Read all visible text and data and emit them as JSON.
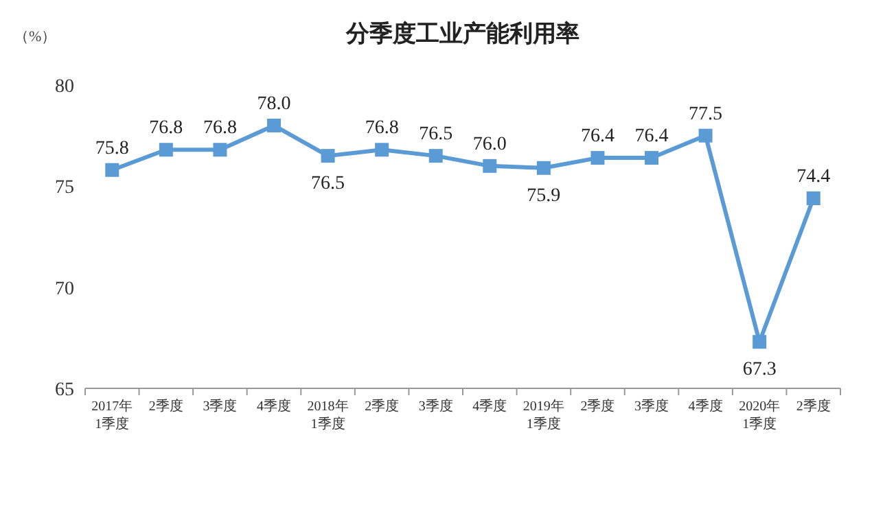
{
  "chart_data": {
    "type": "line",
    "title": "分季度工业产能利用率",
    "ylabel": "（%）",
    "categories": [
      "2017年\n1季度",
      "2季度",
      "3季度",
      "4季度",
      "2018年\n1季度",
      "2季度",
      "3季度",
      "4季度",
      "2019年\n1季度",
      "2季度",
      "3季度",
      "4季度",
      "2020年\n1季度",
      "2季度"
    ],
    "series": [
      {
        "color": "#5b9bd5",
        "values": [
          75.8,
          76.8,
          76.8,
          78.0,
          76.5,
          76.8,
          76.5,
          76.0,
          75.9,
          76.4,
          76.4,
          77.5,
          67.3,
          74.4
        ],
        "value_labels": [
          "75.8",
          "76.8",
          "76.8",
          "78.0",
          "76.5",
          "76.8",
          "76.5",
          "76.0",
          "75.9",
          "76.4",
          "76.4",
          "77.5",
          "67.3",
          "74.4"
        ]
      }
    ],
    "ylim": [
      65,
      80
    ],
    "yticks": [
      65,
      70,
      75,
      80
    ],
    "grid": false,
    "marker": "square",
    "line_style": "solid"
  }
}
